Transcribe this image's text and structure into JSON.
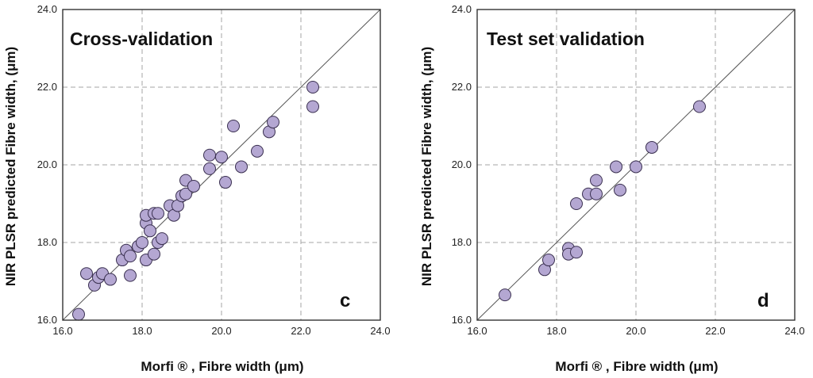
{
  "chart_data": [
    {
      "type": "scatter",
      "panel_title": "Cross-validation",
      "panel_letter": "c",
      "xlabel": "Morfi ® , Fibre width (μm)",
      "ylabel": "NIR PLSR predicted Fibre width, (μm)",
      "xlim": [
        16.0,
        24.0
      ],
      "ylim": [
        16.0,
        24.0
      ],
      "x_ticks": [
        "16.0",
        "18.0",
        "20.0",
        "22.0",
        "24.0"
      ],
      "y_ticks": [
        "16.0",
        "18.0",
        "20.0",
        "22.0",
        "24.0"
      ],
      "grid": true,
      "reference_line": "y = x",
      "points": [
        {
          "x": 16.4,
          "y": 16.15
        },
        {
          "x": 16.6,
          "y": 17.2
        },
        {
          "x": 16.8,
          "y": 16.9
        },
        {
          "x": 16.9,
          "y": 17.1
        },
        {
          "x": 17.0,
          "y": 17.2
        },
        {
          "x": 17.2,
          "y": 17.05
        },
        {
          "x": 17.5,
          "y": 17.55
        },
        {
          "x": 17.6,
          "y": 17.8
        },
        {
          "x": 17.7,
          "y": 17.15
        },
        {
          "x": 17.7,
          "y": 17.65
        },
        {
          "x": 17.9,
          "y": 17.9
        },
        {
          "x": 18.0,
          "y": 18.0
        },
        {
          "x": 18.1,
          "y": 17.55
        },
        {
          "x": 18.1,
          "y": 18.5
        },
        {
          "x": 18.1,
          "y": 18.7
        },
        {
          "x": 18.2,
          "y": 18.3
        },
        {
          "x": 18.3,
          "y": 17.7
        },
        {
          "x": 18.3,
          "y": 18.75
        },
        {
          "x": 18.4,
          "y": 18.0
        },
        {
          "x": 18.4,
          "y": 18.75
        },
        {
          "x": 18.5,
          "y": 18.1
        },
        {
          "x": 18.7,
          "y": 18.95
        },
        {
          "x": 18.8,
          "y": 18.7
        },
        {
          "x": 18.9,
          "y": 18.95
        },
        {
          "x": 19.0,
          "y": 19.2
        },
        {
          "x": 19.1,
          "y": 19.25
        },
        {
          "x": 19.1,
          "y": 19.6
        },
        {
          "x": 19.3,
          "y": 19.45
        },
        {
          "x": 19.7,
          "y": 19.9
        },
        {
          "x": 19.7,
          "y": 20.25
        },
        {
          "x": 20.0,
          "y": 20.2
        },
        {
          "x": 20.1,
          "y": 19.55
        },
        {
          "x": 20.3,
          "y": 21.0
        },
        {
          "x": 20.5,
          "y": 19.95
        },
        {
          "x": 20.9,
          "y": 20.35
        },
        {
          "x": 21.2,
          "y": 20.85
        },
        {
          "x": 21.3,
          "y": 21.1
        },
        {
          "x": 22.3,
          "y": 22.0
        },
        {
          "x": 22.3,
          "y": 21.5
        }
      ]
    },
    {
      "type": "scatter",
      "panel_title": "Test set validation",
      "panel_letter": "d",
      "xlabel": "Morfi ® , Fibre  width (μm)",
      "ylabel": "NIR PLSR predicted Fibre width, (μm)",
      "xlim": [
        16.0,
        24.0
      ],
      "ylim": [
        16.0,
        24.0
      ],
      "x_ticks": [
        "16.0",
        "18.0",
        "20.0",
        "22.0",
        "24.0"
      ],
      "y_ticks": [
        "16.0",
        "18.0",
        "20.0",
        "22.0",
        "24.0"
      ],
      "grid": true,
      "reference_line": "y = x",
      "points": [
        {
          "x": 16.7,
          "y": 16.65
        },
        {
          "x": 17.7,
          "y": 17.3
        },
        {
          "x": 17.8,
          "y": 17.55
        },
        {
          "x": 18.3,
          "y": 17.85
        },
        {
          "x": 18.3,
          "y": 17.7
        },
        {
          "x": 18.5,
          "y": 17.75
        },
        {
          "x": 18.5,
          "y": 19.0
        },
        {
          "x": 18.8,
          "y": 19.25
        },
        {
          "x": 19.0,
          "y": 19.25
        },
        {
          "x": 19.0,
          "y": 19.6
        },
        {
          "x": 19.5,
          "y": 19.95
        },
        {
          "x": 19.6,
          "y": 19.35
        },
        {
          "x": 20.0,
          "y": 19.95
        },
        {
          "x": 20.4,
          "y": 20.45
        },
        {
          "x": 21.6,
          "y": 21.5
        }
      ]
    }
  ]
}
